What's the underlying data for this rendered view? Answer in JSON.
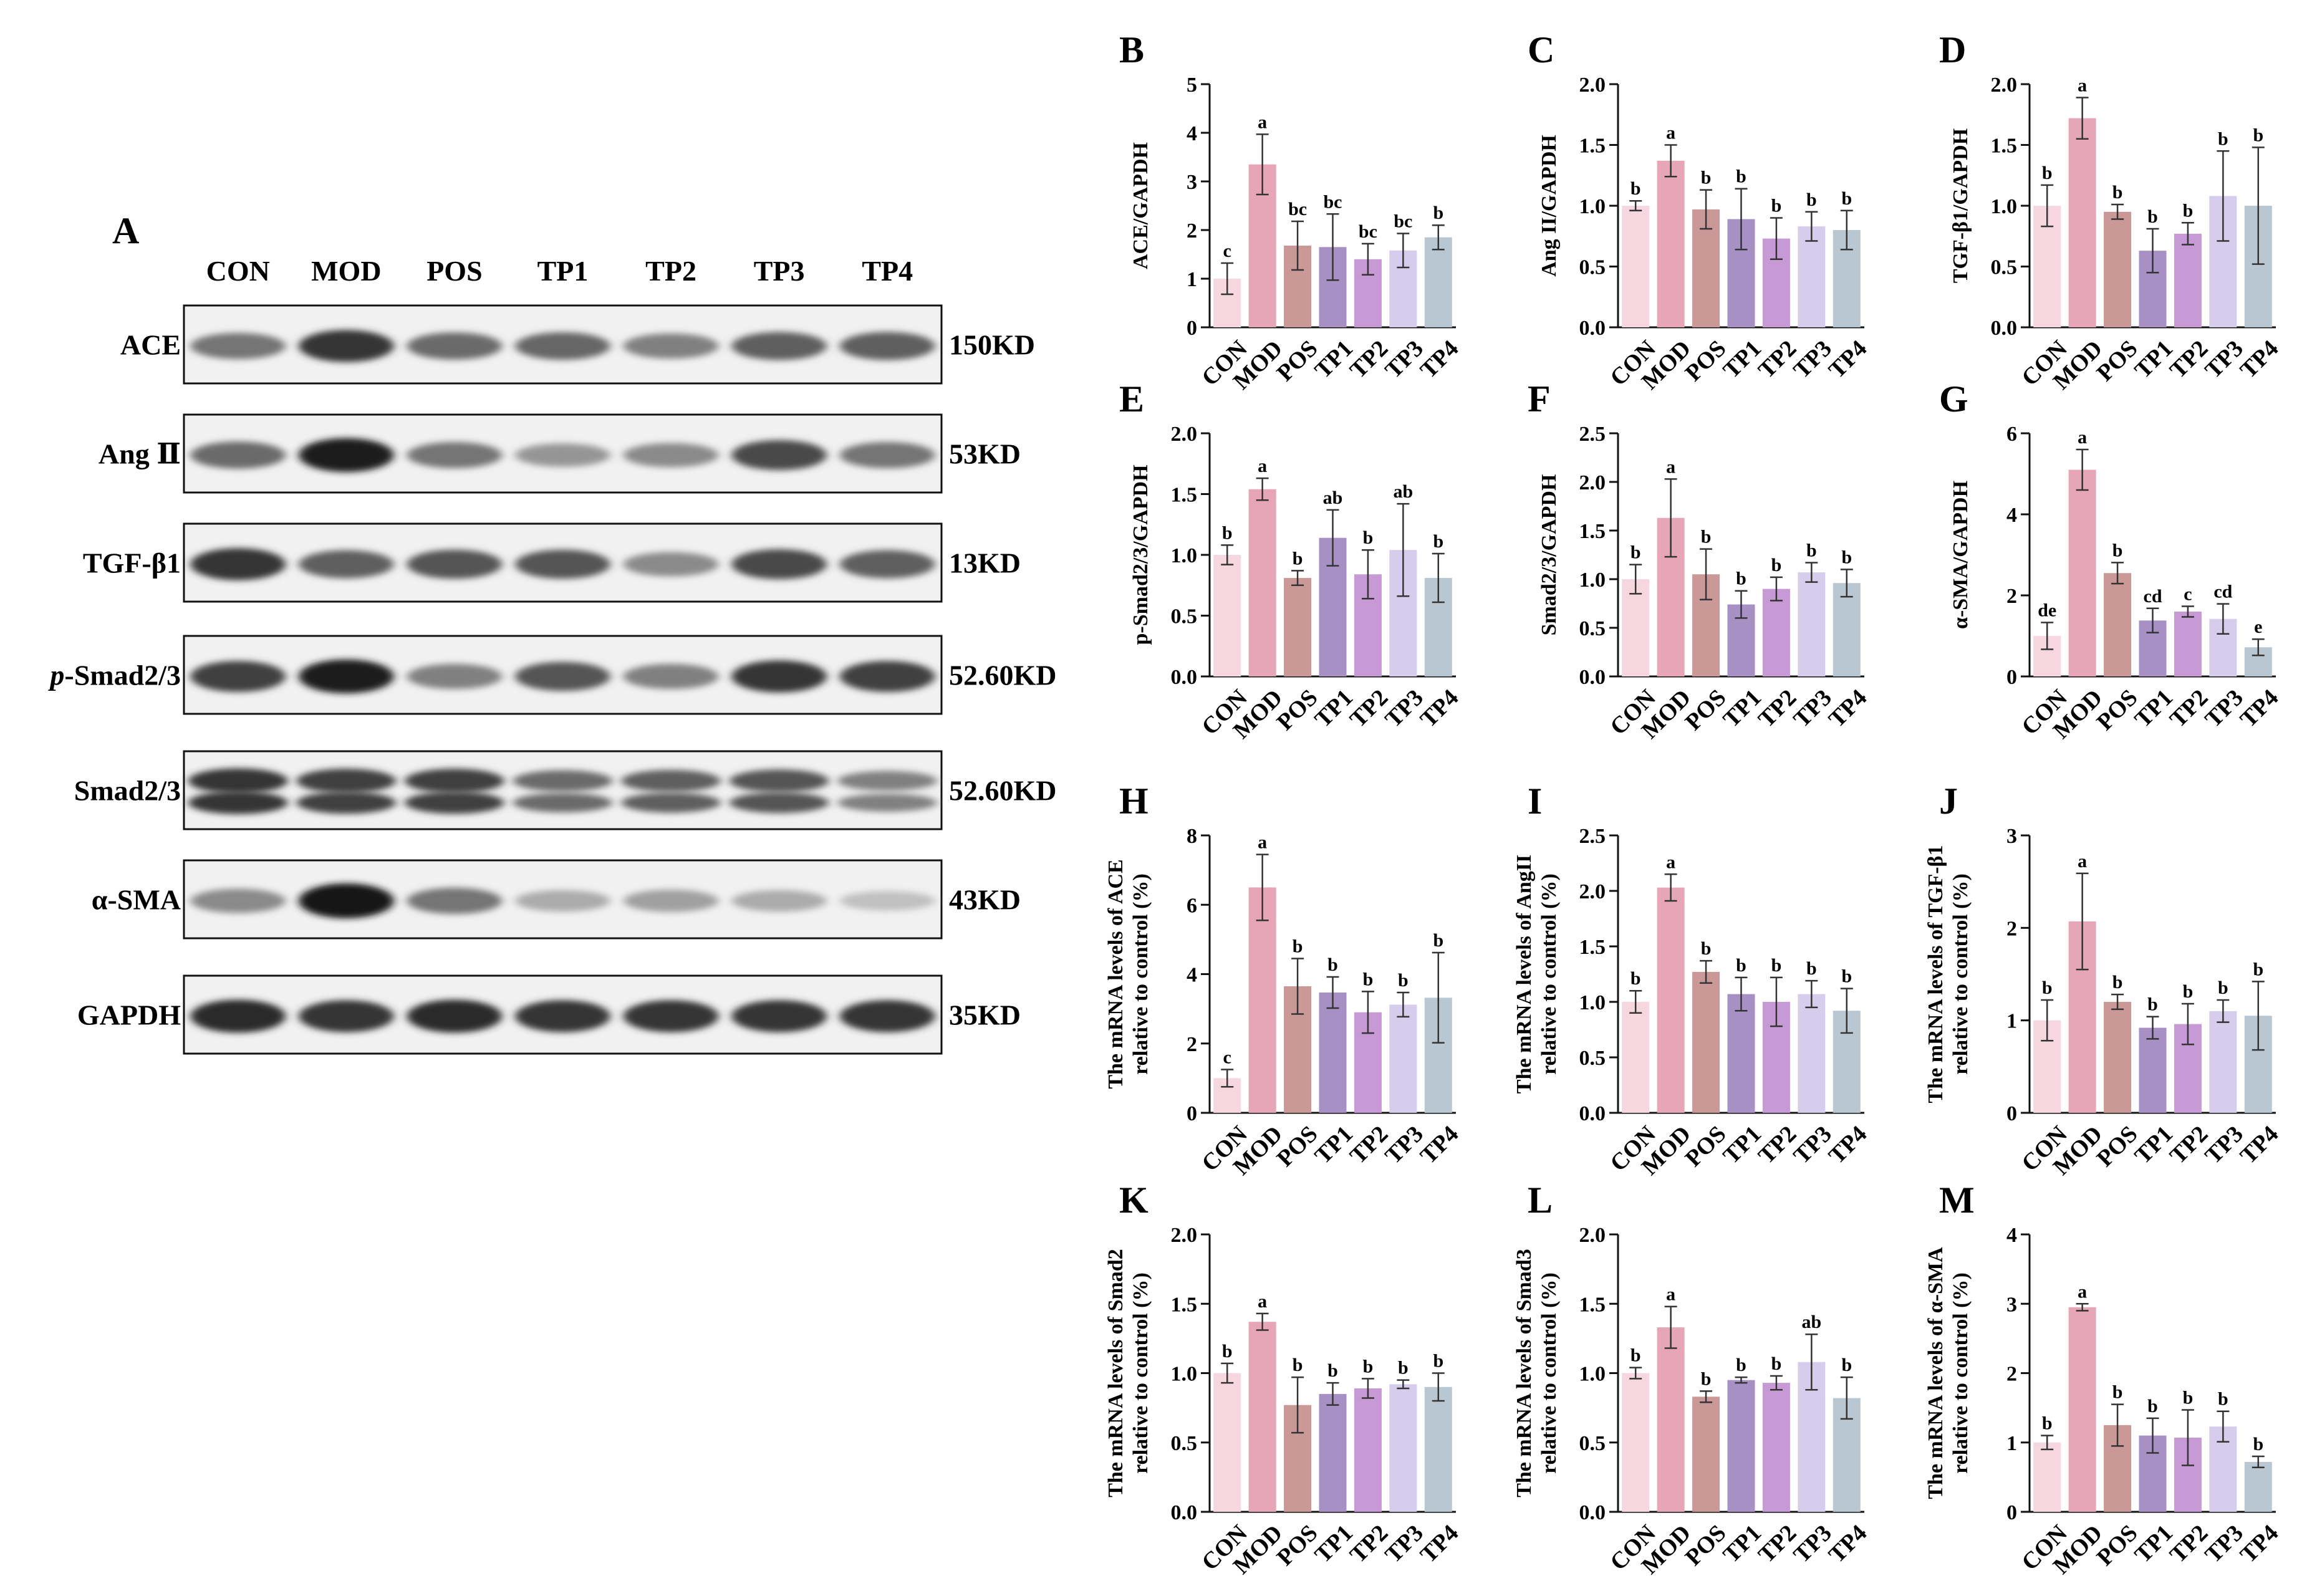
{
  "blot": {
    "letter": "A",
    "groups": [
      "CON",
      "MOD",
      "POS",
      "TP1",
      "TP2",
      "TP3",
      "TP4"
    ],
    "rows": [
      {
        "label": "ACE",
        "size": "150KD",
        "intensity": [
          0.55,
          0.85,
          0.6,
          0.62,
          0.5,
          0.65,
          0.65
        ]
      },
      {
        "label": "Ang Ⅱ",
        "size": "53KD",
        "intensity": [
          0.6,
          0.95,
          0.55,
          0.4,
          0.45,
          0.75,
          0.55
        ]
      },
      {
        "label": "TGF-β1",
        "size": "13KD",
        "intensity": [
          0.85,
          0.65,
          0.7,
          0.7,
          0.45,
          0.75,
          0.65
        ]
      },
      {
        "label": "p-Smad2/3",
        "label_italic": "p",
        "label_rest": "-Smad2/3",
        "size": "52.60KD",
        "intensity": [
          0.8,
          0.95,
          0.5,
          0.7,
          0.5,
          0.85,
          0.8
        ]
      },
      {
        "label": "Smad2/3",
        "size": "52.60KD",
        "intensity": [
          0.85,
          0.8,
          0.8,
          0.6,
          0.65,
          0.7,
          0.5
        ]
      },
      {
        "label": "α-SMA",
        "size": "43KD",
        "intensity": [
          0.45,
          1.0,
          0.55,
          0.3,
          0.35,
          0.3,
          0.2
        ]
      },
      {
        "label": "GAPDH",
        "size": "35KD",
        "intensity": [
          0.9,
          0.85,
          0.9,
          0.85,
          0.85,
          0.85,
          0.85
        ]
      }
    ]
  },
  "colors": [
    "#f6d6df",
    "#e7a6b8",
    "#c99897",
    "#a791c4",
    "#c79ad6",
    "#d6cdec",
    "#b9c7d2"
  ],
  "chart_data": [
    {
      "letter": "B",
      "type": "bar",
      "ylabel": "ACE/GAPDH",
      "ylim": [
        0,
        5
      ],
      "yticks": [
        "0",
        "1",
        "2",
        "3",
        "4",
        "5"
      ],
      "categories": [
        "CON",
        "MOD",
        "POS",
        "TP1",
        "TP2",
        "TP3",
        "TP4"
      ],
      "values": [
        1.0,
        3.35,
        1.68,
        1.65,
        1.4,
        1.58,
        1.85
      ],
      "errors": [
        0.32,
        0.62,
        0.5,
        0.68,
        0.32,
        0.35,
        0.25
      ],
      "labels": [
        "c",
        "a",
        "bc",
        "bc",
        "bc",
        "bc",
        "b"
      ]
    },
    {
      "letter": "C",
      "type": "bar",
      "ylabel": "Ang II/GAPDH",
      "ylim": [
        0,
        2.0
      ],
      "yticks": [
        "0.0",
        "0.5",
        "1.0",
        "1.5",
        "2.0"
      ],
      "categories": [
        "CON",
        "MOD",
        "POS",
        "TP1",
        "TP2",
        "TP3",
        "TP4"
      ],
      "values": [
        1.0,
        1.37,
        0.97,
        0.89,
        0.73,
        0.83,
        0.8
      ],
      "errors": [
        0.04,
        0.13,
        0.16,
        0.25,
        0.17,
        0.12,
        0.16
      ],
      "labels": [
        "b",
        "a",
        "b",
        "b",
        "b",
        "b",
        "b"
      ]
    },
    {
      "letter": "D",
      "type": "bar",
      "ylabel": "TGF-β1/GAPDH",
      "ylim": [
        0,
        2.0
      ],
      "yticks": [
        "0.0",
        "0.5",
        "1.0",
        "1.5",
        "2.0"
      ],
      "categories": [
        "CON",
        "MOD",
        "POS",
        "TP1",
        "TP2",
        "TP3",
        "TP4"
      ],
      "values": [
        1.0,
        1.72,
        0.95,
        0.63,
        0.77,
        1.08,
        1.0
      ],
      "errors": [
        0.17,
        0.17,
        0.06,
        0.18,
        0.09,
        0.37,
        0.48
      ],
      "labels": [
        "b",
        "a",
        "b",
        "b",
        "b",
        "b",
        "b"
      ]
    },
    {
      "letter": "E",
      "type": "bar",
      "ylabel": "p-Smad2/3/GAPDH",
      "ylim": [
        0,
        2.0
      ],
      "yticks": [
        "0.0",
        "0.5",
        "1.0",
        "1.5",
        "2.0"
      ],
      "categories": [
        "CON",
        "MOD",
        "POS",
        "TP1",
        "TP2",
        "TP3",
        "TP4"
      ],
      "values": [
        1.0,
        1.54,
        0.81,
        1.14,
        0.84,
        1.04,
        0.81
      ],
      "errors": [
        0.08,
        0.09,
        0.06,
        0.23,
        0.2,
        0.38,
        0.2
      ],
      "labels": [
        "b",
        "a",
        "b",
        "ab",
        "b",
        "ab",
        "b"
      ]
    },
    {
      "letter": "F",
      "type": "bar",
      "ylabel": "Smad2/3/GAPDH",
      "ylim": [
        0,
        2.5
      ],
      "yticks": [
        "0.0",
        "0.5",
        "1.0",
        "1.5",
        "2.0",
        "2.5"
      ],
      "categories": [
        "CON",
        "MOD",
        "POS",
        "TP1",
        "TP2",
        "TP3",
        "TP4"
      ],
      "values": [
        1.0,
        1.63,
        1.05,
        0.74,
        0.9,
        1.07,
        0.96
      ],
      "errors": [
        0.15,
        0.4,
        0.26,
        0.14,
        0.12,
        0.1,
        0.14
      ],
      "labels": [
        "b",
        "a",
        "b",
        "b",
        "b",
        "b",
        "b"
      ]
    },
    {
      "letter": "G",
      "type": "bar",
      "ylabel": "α-SMA/GAPDH",
      "ylim": [
        0,
        6
      ],
      "yticks": [
        "0",
        "2",
        "4",
        "6"
      ],
      "categories": [
        "CON",
        "MOD",
        "POS",
        "TP1",
        "TP2",
        "TP3",
        "TP4"
      ],
      "values": [
        1.0,
        5.1,
        2.55,
        1.38,
        1.6,
        1.42,
        0.72
      ],
      "errors": [
        0.33,
        0.5,
        0.26,
        0.3,
        0.13,
        0.37,
        0.2
      ],
      "labels": [
        "de",
        "a",
        "b",
        "cd",
        "c",
        "cd",
        "e"
      ]
    },
    {
      "letter": "H",
      "type": "bar",
      "ylabel_lines": [
        "The mRNA levels of ACE",
        "relative to control (%)"
      ],
      "ylim": [
        0,
        8
      ],
      "yticks": [
        "0",
        "2",
        "4",
        "6",
        "8"
      ],
      "categories": [
        "CON",
        "MOD",
        "POS",
        "TP1",
        "TP2",
        "TP3",
        "TP4"
      ],
      "values": [
        1.0,
        6.5,
        3.65,
        3.47,
        2.9,
        3.12,
        3.32
      ],
      "errors": [
        0.25,
        0.95,
        0.8,
        0.45,
        0.6,
        0.35,
        1.3
      ],
      "labels": [
        "c",
        "a",
        "b",
        "b",
        "b",
        "b",
        "b"
      ]
    },
    {
      "letter": "I",
      "type": "bar",
      "ylabel_lines": [
        "The mRNA levels of AngII",
        "relative to control (%)"
      ],
      "ylim": [
        0,
        2.5
      ],
      "yticks": [
        "0.0",
        "0.5",
        "1.0",
        "1.5",
        "2.0",
        "2.5"
      ],
      "categories": [
        "CON",
        "MOD",
        "POS",
        "TP1",
        "TP2",
        "TP3",
        "TP4"
      ],
      "values": [
        1.0,
        2.03,
        1.27,
        1.07,
        1.0,
        1.07,
        0.92
      ],
      "errors": [
        0.1,
        0.12,
        0.1,
        0.15,
        0.22,
        0.12,
        0.2
      ],
      "labels": [
        "b",
        "a",
        "b",
        "b",
        "b",
        "b",
        "b"
      ]
    },
    {
      "letter": "J",
      "type": "bar",
      "ylabel_lines": [
        "The mRNA levels of TGF-β1",
        "relative to control (%)"
      ],
      "ylim": [
        0,
        3
      ],
      "yticks": [
        "0",
        "1",
        "2",
        "3"
      ],
      "categories": [
        "CON",
        "MOD",
        "POS",
        "TP1",
        "TP2",
        "TP3",
        "TP4"
      ],
      "values": [
        1.0,
        2.07,
        1.2,
        0.92,
        0.96,
        1.1,
        1.05
      ],
      "errors": [
        0.22,
        0.52,
        0.08,
        0.12,
        0.22,
        0.12,
        0.37
      ],
      "labels": [
        "b",
        "a",
        "b",
        "b",
        "b",
        "b",
        "b"
      ]
    },
    {
      "letter": "K",
      "type": "bar",
      "ylabel_lines": [
        "The mRNA levels of Smad2",
        "relative to control (%)"
      ],
      "ylim": [
        0,
        2.0
      ],
      "yticks": [
        "0.0",
        "0.5",
        "1.0",
        "1.5",
        "2.0"
      ],
      "categories": [
        "CON",
        "MOD",
        "POS",
        "TP1",
        "TP2",
        "TP3",
        "TP4"
      ],
      "values": [
        1.0,
        1.37,
        0.77,
        0.85,
        0.89,
        0.92,
        0.9
      ],
      "errors": [
        0.07,
        0.06,
        0.2,
        0.08,
        0.07,
        0.03,
        0.1
      ],
      "labels": [
        "b",
        "a",
        "b",
        "b",
        "b",
        "b",
        "b"
      ]
    },
    {
      "letter": "L",
      "type": "bar",
      "ylabel_lines": [
        "The mRNA levels of Smad3",
        "relative to control (%)"
      ],
      "ylim": [
        0,
        2.0
      ],
      "yticks": [
        "0.0",
        "0.5",
        "1.0",
        "1.5",
        "2.0"
      ],
      "categories": [
        "CON",
        "MOD",
        "POS",
        "TP1",
        "TP2",
        "TP3",
        "TP4"
      ],
      "values": [
        1.0,
        1.33,
        0.83,
        0.95,
        0.93,
        1.08,
        0.82
      ],
      "errors": [
        0.04,
        0.15,
        0.04,
        0.02,
        0.05,
        0.2,
        0.15
      ],
      "labels": [
        "b",
        "a",
        "b",
        "b",
        "b",
        "ab",
        "b"
      ]
    },
    {
      "letter": "M",
      "type": "bar",
      "ylabel_lines": [
        "The mRNA levels of α-SMA",
        "relative to control (%)"
      ],
      "ylim": [
        0,
        4
      ],
      "yticks": [
        "0",
        "1",
        "2",
        "3",
        "4"
      ],
      "categories": [
        "CON",
        "MOD",
        "POS",
        "TP1",
        "TP2",
        "TP3",
        "TP4"
      ],
      "values": [
        1.0,
        2.95,
        1.25,
        1.1,
        1.07,
        1.23,
        0.72
      ],
      "errors": [
        0.1,
        0.05,
        0.3,
        0.25,
        0.4,
        0.22,
        0.08
      ],
      "labels": [
        "b",
        "a",
        "b",
        "b",
        "b",
        "b",
        "b"
      ]
    }
  ]
}
